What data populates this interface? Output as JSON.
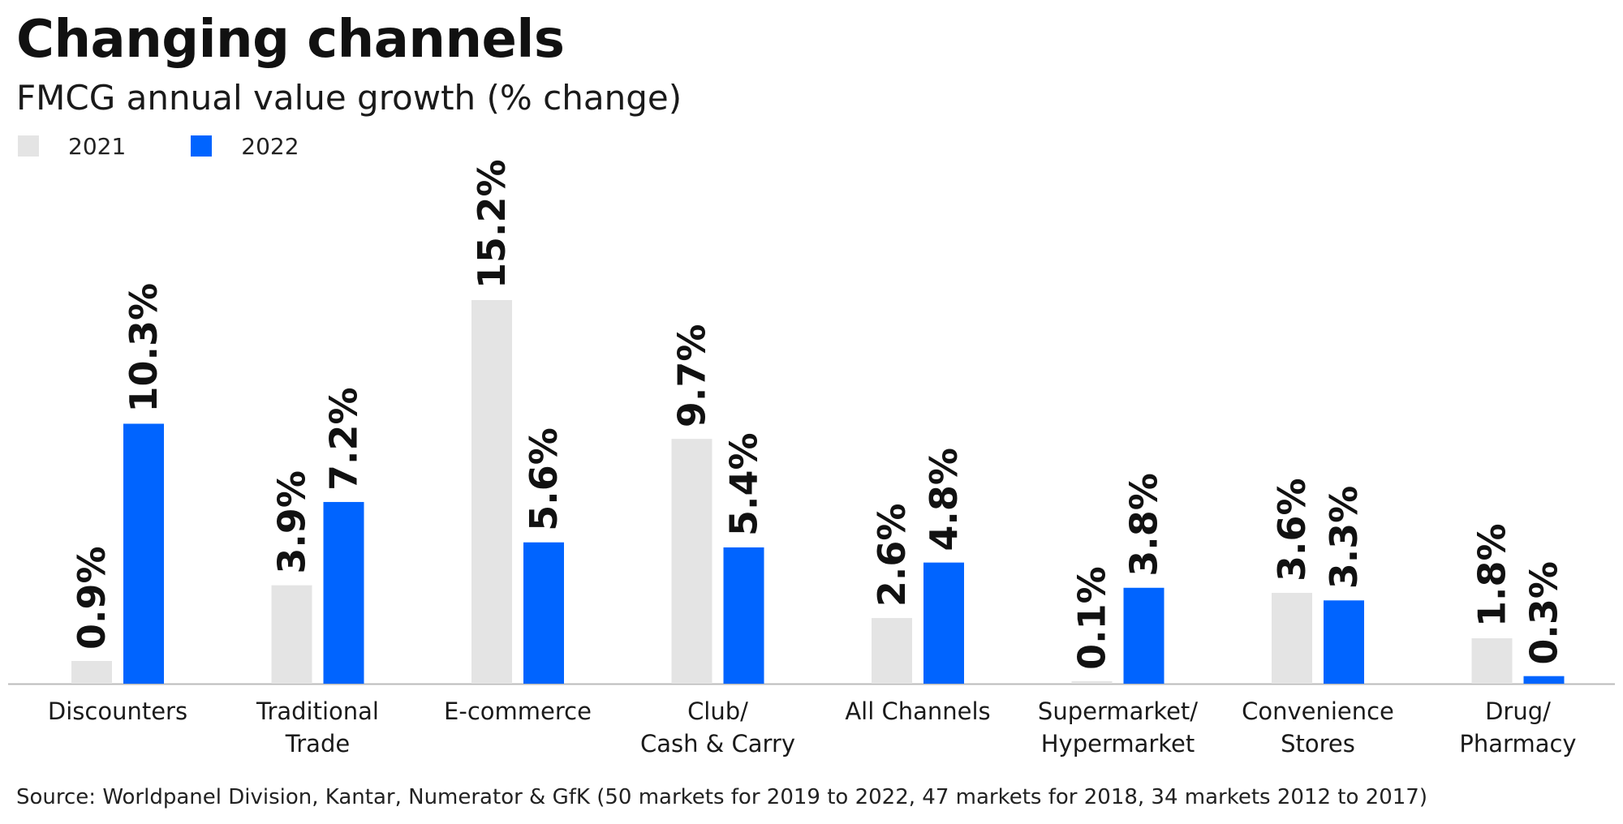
{
  "title": "Changing channels",
  "subtitle": "FMCG annual value growth (% change)",
  "source": "Source: Worldpanel Division, Kantar, Numerator & GfK (50 markets for 2019 to 2022, 47 markets for 2018, 34 markets 2012 to 2017)",
  "colors": {
    "series_2021": "#e4e4e4",
    "series_2022": "#0064ff",
    "axis": "#bbbbbb",
    "text": "#111111"
  },
  "chart_data": {
    "type": "bar",
    "title": "Changing channels",
    "subtitle": "FMCG annual value growth (% change)",
    "categories": [
      [
        "Discounters"
      ],
      [
        "Traditional",
        "Trade"
      ],
      [
        "E-commerce"
      ],
      [
        "Club/",
        "Cash & Carry"
      ],
      [
        "All Channels"
      ],
      [
        "Supermarket/",
        "Hypermarket"
      ],
      [
        "Convenience",
        "Stores"
      ],
      [
        "Drug/",
        "Pharmacy"
      ]
    ],
    "series": [
      {
        "name": "2021",
        "values": [
          0.9,
          3.9,
          15.2,
          9.7,
          2.6,
          0.1,
          3.6,
          1.8
        ],
        "labels": [
          "0.9%",
          "3.9%",
          "15.2%",
          "9.7%",
          "2.6%",
          "0.1%",
          "3.6%",
          "1.8%"
        ]
      },
      {
        "name": "2022",
        "values": [
          10.3,
          7.2,
          5.6,
          5.4,
          4.8,
          3.8,
          3.3,
          0.3
        ],
        "labels": [
          "10.3%",
          "7.2%",
          "5.6%",
          "5.4%",
          "4.8%",
          "3.8%",
          "3.3%",
          "0.3%"
        ]
      }
    ],
    "ylim": [
      0,
      15.2
    ],
    "grid": false,
    "legend": "top-left"
  }
}
